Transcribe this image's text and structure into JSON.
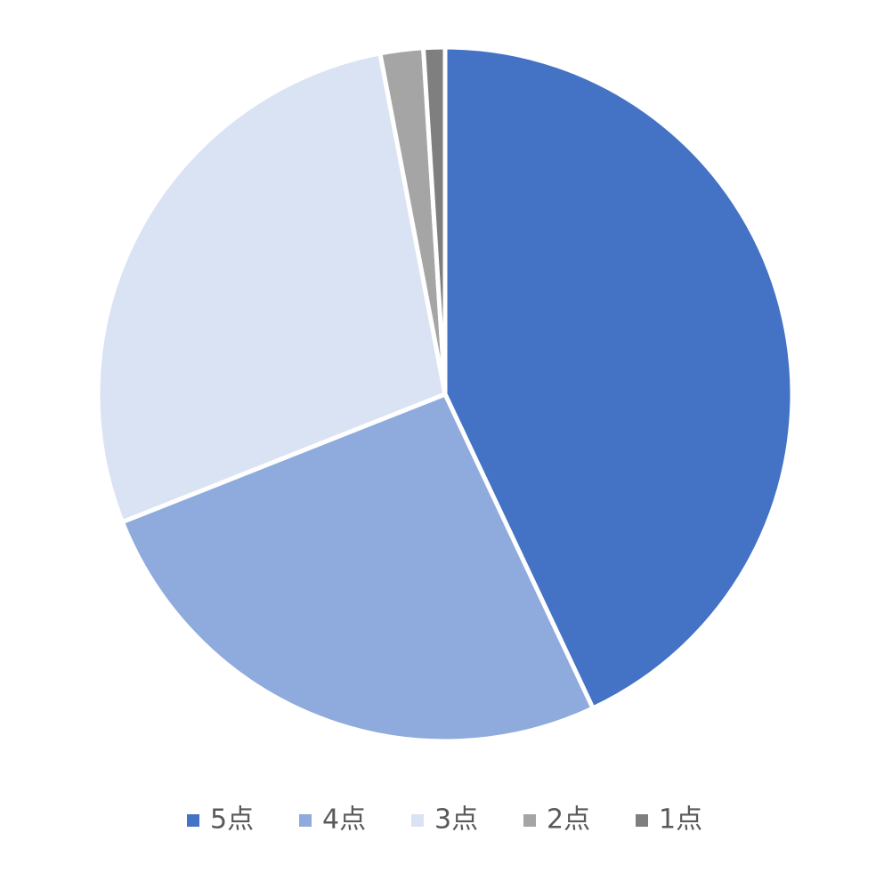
{
  "chart_data": {
    "type": "pie",
    "categories": [
      "5点",
      "4点",
      "3点",
      "2点",
      "1点"
    ],
    "values": [
      43,
      26,
      28,
      2,
      1
    ],
    "colors": [
      "#4472c4",
      "#8faadc",
      "#dae3f3",
      "#a5a5a5",
      "#7f7f7f"
    ],
    "legend": "bottom"
  }
}
